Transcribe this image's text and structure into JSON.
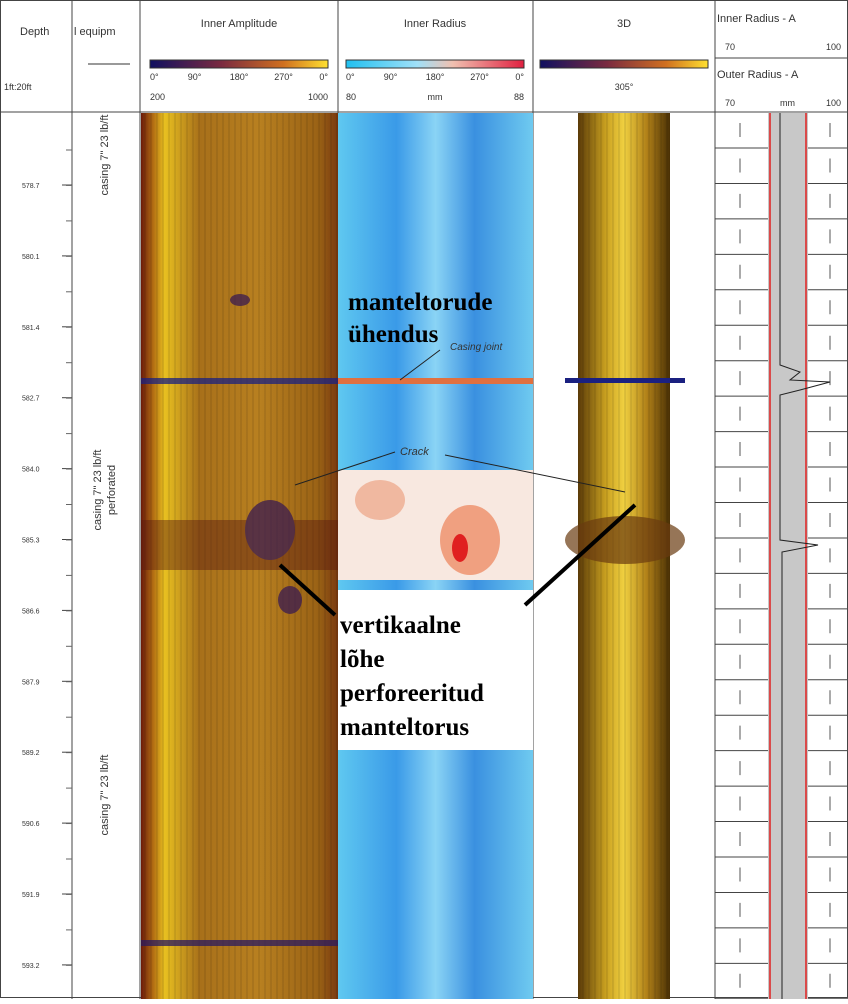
{
  "header": {
    "depth": {
      "title": "Depth",
      "scale": "1ft:20ft"
    },
    "equipment": {
      "title": "l equipm"
    },
    "inner_amplitude": {
      "title": "Inner Amplitude",
      "angles": [
        "0°",
        "90°",
        "180°",
        "270°",
        "0°"
      ],
      "min": "200",
      "max": "1000"
    },
    "inner_radius": {
      "title": "Inner Radius",
      "angles": [
        "0°",
        "90°",
        "180°",
        "270°",
        "0°"
      ],
      "min": "80",
      "unit": "mm",
      "max": "88"
    },
    "view3d": {
      "title": "3D",
      "angle": "305°"
    },
    "radius_curves": {
      "inner_title": "Inner Radius - A",
      "inner_min": "70",
      "inner_max": "100",
      "outer_title": "Outer Radius - A",
      "outer_min": "70",
      "outer_unit": "mm",
      "outer_max": "100"
    }
  },
  "depths": [
    "578.7",
    "580.1",
    "581.4",
    "582.7",
    "584.0",
    "585.3",
    "586.6",
    "587.9",
    "589.2",
    "590.6",
    "591.9",
    "593.2"
  ],
  "equipment": [
    {
      "lines": [
        "casing 7\" 23 lb/ft"
      ]
    },
    {
      "lines": [
        "casing 7\" 23 lb/ft",
        "perforated"
      ]
    },
    {
      "lines": [
        "casing 7\" 23 lb/ft"
      ]
    }
  ],
  "annotations": {
    "joint": [
      "manteltorude",
      "ühendus"
    ],
    "joint_small": "Casing joint",
    "crack": "Crack",
    "crack_label": [
      "vertikaalne",
      "lõhe",
      "perforeeritud",
      "manteltorus"
    ]
  }
}
